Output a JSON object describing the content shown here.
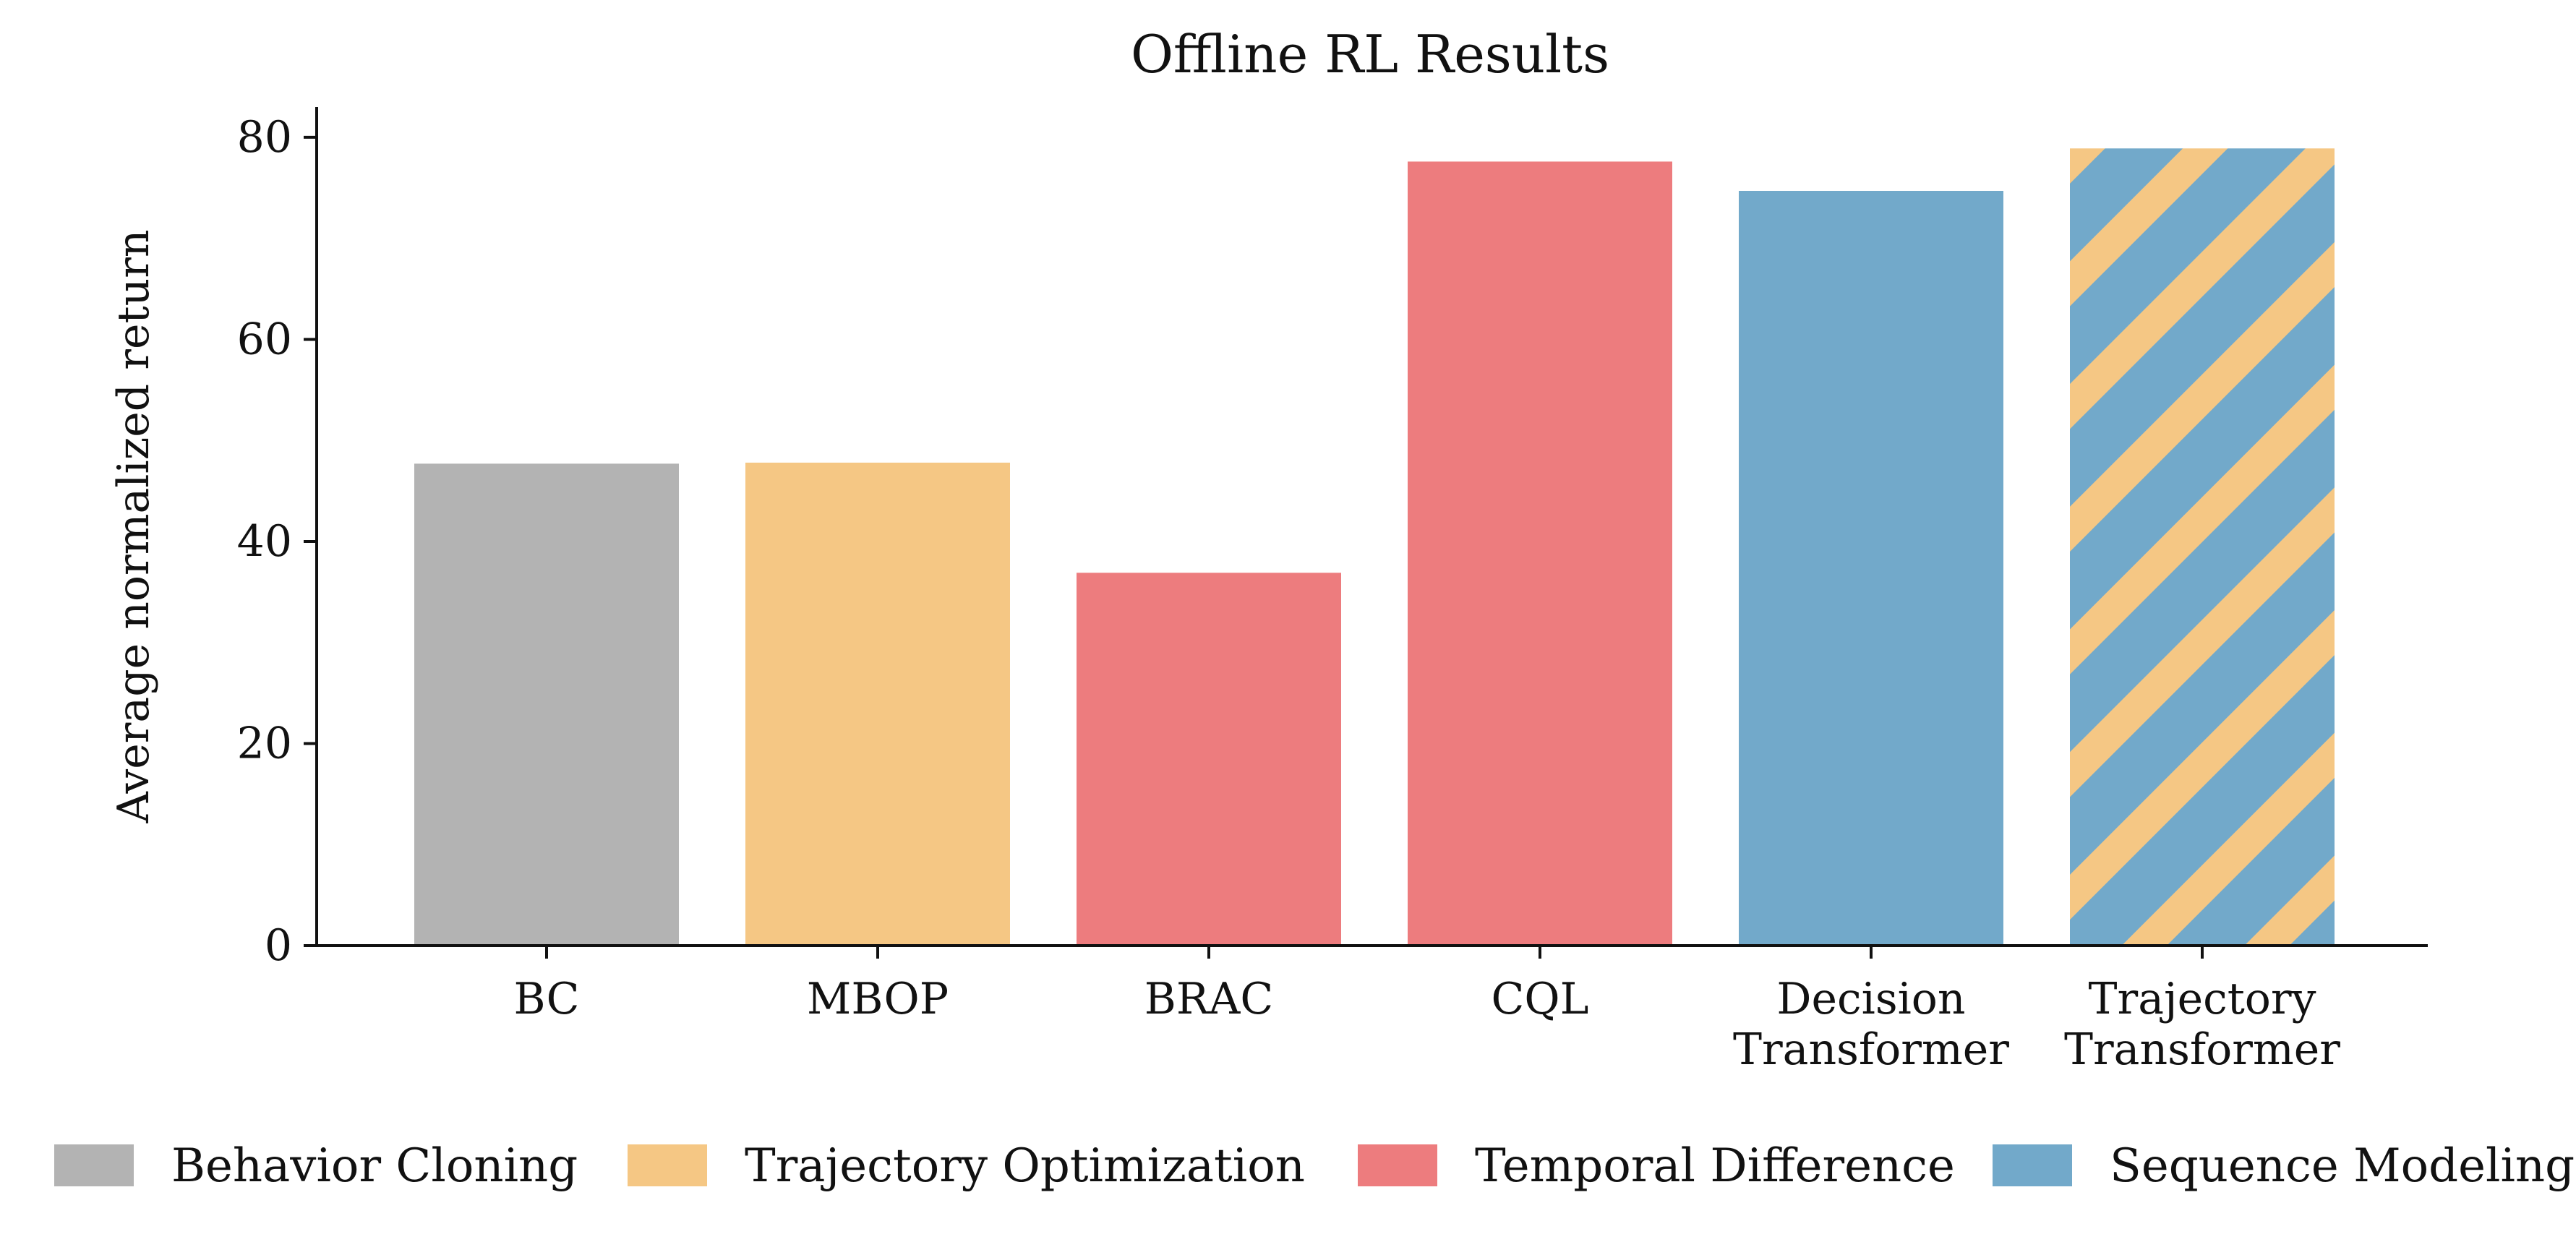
{
  "colors": {
    "behavior_cloning": "#b3b3b3",
    "trajectory_optimization": "#f5c784",
    "temporal_difference": "#ed7c7e",
    "sequence_modeling": "#72a9ca",
    "axis": "#111111"
  },
  "chart_data": {
    "type": "bar",
    "title": "Offline RL Results",
    "xlabel": "",
    "ylabel": "Average normalized return",
    "ylim": [
      0,
      83
    ],
    "yticks": [
      0,
      20,
      40,
      60,
      80
    ],
    "grid": false,
    "legend_placement": "bottom",
    "categories": [
      [
        "BC"
      ],
      [
        "MBOP"
      ],
      [
        "BRAC"
      ],
      [
        "CQL"
      ],
      [
        "Decision",
        "Transformer"
      ],
      [
        "Trajectory",
        "Transformer"
      ]
    ],
    "values": [
      47.7,
      47.8,
      36.9,
      77.6,
      74.7,
      78.9
    ],
    "bar_groups": [
      "behavior_cloning",
      "trajectory_optimization",
      "temporal_difference",
      "temporal_difference",
      "sequence_modeling",
      "sequence_modeling+trajectory_optimization"
    ],
    "legend": [
      {
        "label": "Behavior Cloning",
        "color_key": "behavior_cloning"
      },
      {
        "label": "Trajectory Optimization",
        "color_key": "trajectory_optimization"
      },
      {
        "label": "Temporal Difference",
        "color_key": "temporal_difference"
      },
      {
        "label": "Sequence Modeling",
        "color_key": "sequence_modeling"
      }
    ]
  }
}
